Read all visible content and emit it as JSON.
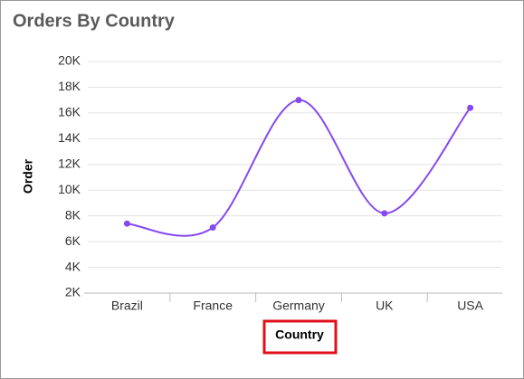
{
  "chart_data": {
    "type": "line",
    "title": "Orders By Country",
    "x_label": "Country",
    "y_label": "Order",
    "categories": [
      "Brazil",
      "France",
      "Germany",
      "UK",
      "USA"
    ],
    "series": [
      {
        "name": "Orders",
        "color": "#8549f0",
        "values": [
          7400,
          7100,
          17000,
          8200,
          16400
        ]
      }
    ],
    "ylim": [
      2000,
      20000
    ],
    "yticks": [
      {
        "value": 2000,
        "label": "2K"
      },
      {
        "value": 4000,
        "label": "4K"
      },
      {
        "value": 6000,
        "label": "6K"
      },
      {
        "value": 8000,
        "label": "8K"
      },
      {
        "value": 10000,
        "label": "10K"
      },
      {
        "value": 12000,
        "label": "12K"
      },
      {
        "value": 14000,
        "label": "14K"
      },
      {
        "value": 16000,
        "label": "16K"
      },
      {
        "value": 18000,
        "label": "18K"
      },
      {
        "value": 20000,
        "label": "20K"
      }
    ],
    "grid": true
  }
}
